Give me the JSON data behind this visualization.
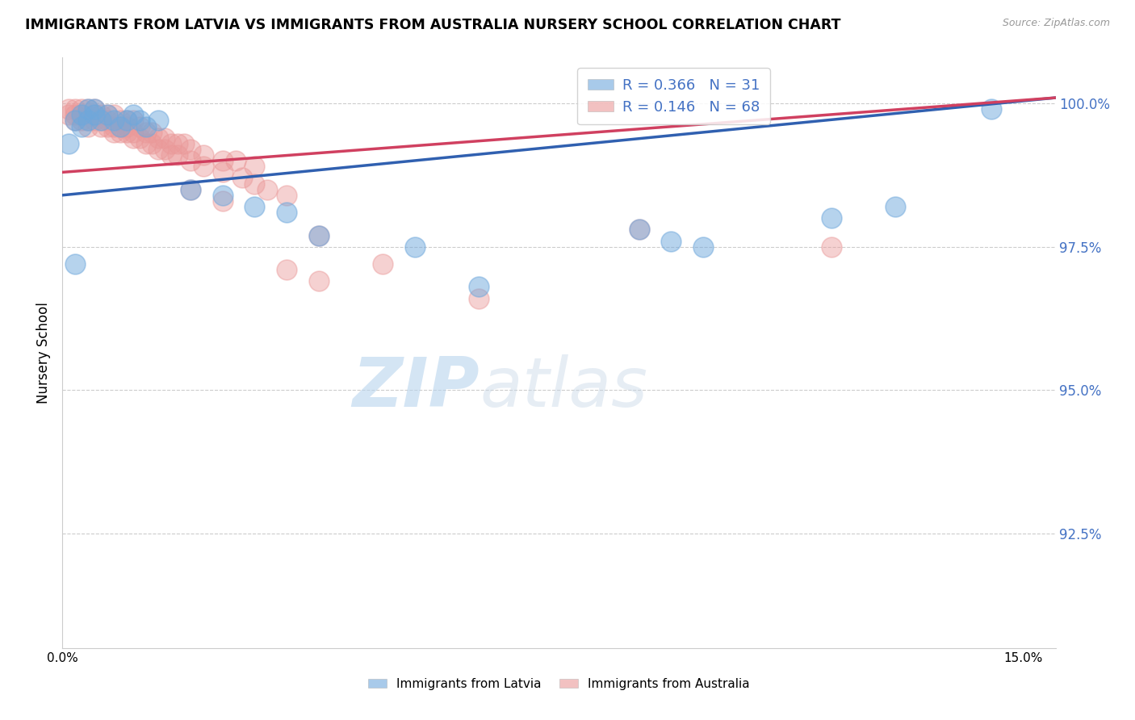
{
  "title": "IMMIGRANTS FROM LATVIA VS IMMIGRANTS FROM AUSTRALIA NURSERY SCHOOL CORRELATION CHART",
  "source": "Source: ZipAtlas.com",
  "ylabel": "Nursery School",
  "xlim": [
    0.0,
    0.155
  ],
  "ylim": [
    0.905,
    1.008
  ],
  "yticks": [
    0.925,
    0.95,
    0.975,
    1.0
  ],
  "ytick_labels": [
    "92.5%",
    "95.0%",
    "97.5%",
    "100.0%"
  ],
  "xticks": [
    0.0,
    0.025,
    0.05,
    0.075,
    0.1,
    0.125,
    0.15
  ],
  "legend_r1": "R = 0.366",
  "legend_n1": "N = 31",
  "legend_r2": "R = 0.146",
  "legend_n2": "N = 68",
  "color_latvia": "#6fa8dc",
  "color_australia": "#ea9999",
  "color_trendline_latvia": "#3060b0",
  "color_trendline_australia": "#d04060",
  "background_color": "#ffffff",
  "latvia_x": [
    0.001,
    0.002,
    0.003,
    0.003,
    0.004,
    0.004,
    0.005,
    0.005,
    0.006,
    0.007,
    0.008,
    0.009,
    0.01,
    0.011,
    0.012,
    0.013,
    0.015,
    0.02,
    0.025,
    0.03,
    0.035,
    0.002,
    0.04,
    0.055,
    0.065,
    0.09,
    0.095,
    0.1,
    0.12,
    0.13,
    0.145
  ],
  "latvia_y": [
    0.993,
    0.997,
    0.998,
    0.996,
    0.999,
    0.997,
    0.999,
    0.998,
    0.997,
    0.998,
    0.997,
    0.996,
    0.997,
    0.998,
    0.997,
    0.996,
    0.997,
    0.985,
    0.984,
    0.982,
    0.981,
    0.972,
    0.977,
    0.975,
    0.968,
    0.978,
    0.976,
    0.975,
    0.98,
    0.982,
    0.999
  ],
  "australia_x": [
    0.001,
    0.002,
    0.002,
    0.003,
    0.003,
    0.004,
    0.004,
    0.005,
    0.005,
    0.006,
    0.006,
    0.007,
    0.007,
    0.008,
    0.008,
    0.009,
    0.009,
    0.01,
    0.01,
    0.011,
    0.011,
    0.012,
    0.013,
    0.014,
    0.015,
    0.016,
    0.017,
    0.018,
    0.019,
    0.02,
    0.022,
    0.025,
    0.027,
    0.03,
    0.02,
    0.025,
    0.04,
    0.05,
    0.065,
    0.035,
    0.04,
    0.09,
    0.12,
    0.001,
    0.002,
    0.003,
    0.004,
    0.005,
    0.006,
    0.007,
    0.008,
    0.009,
    0.01,
    0.011,
    0.012,
    0.013,
    0.014,
    0.015,
    0.016,
    0.017,
    0.018,
    0.02,
    0.022,
    0.025,
    0.028,
    0.03,
    0.032,
    0.035
  ],
  "australia_y": [
    0.999,
    0.999,
    0.998,
    0.999,
    0.998,
    0.999,
    0.997,
    0.999,
    0.998,
    0.998,
    0.997,
    0.998,
    0.997,
    0.998,
    0.996,
    0.997,
    0.996,
    0.997,
    0.996,
    0.997,
    0.995,
    0.996,
    0.995,
    0.995,
    0.994,
    0.994,
    0.993,
    0.993,
    0.993,
    0.992,
    0.991,
    0.99,
    0.99,
    0.989,
    0.985,
    0.983,
    0.977,
    0.972,
    0.966,
    0.971,
    0.969,
    0.978,
    0.975,
    0.998,
    0.997,
    0.997,
    0.996,
    0.997,
    0.996,
    0.996,
    0.995,
    0.995,
    0.995,
    0.994,
    0.994,
    0.993,
    0.993,
    0.992,
    0.992,
    0.991,
    0.991,
    0.99,
    0.989,
    0.988,
    0.987,
    0.986,
    0.985,
    0.984
  ],
  "trendline_latvia_x0": 0.0,
  "trendline_latvia_y0": 0.984,
  "trendline_latvia_x1": 0.155,
  "trendline_latvia_y1": 1.001,
  "trendline_australia_x0": 0.0,
  "trendline_australia_y0": 0.988,
  "trendline_australia_x1": 0.155,
  "trendline_australia_y1": 1.001
}
